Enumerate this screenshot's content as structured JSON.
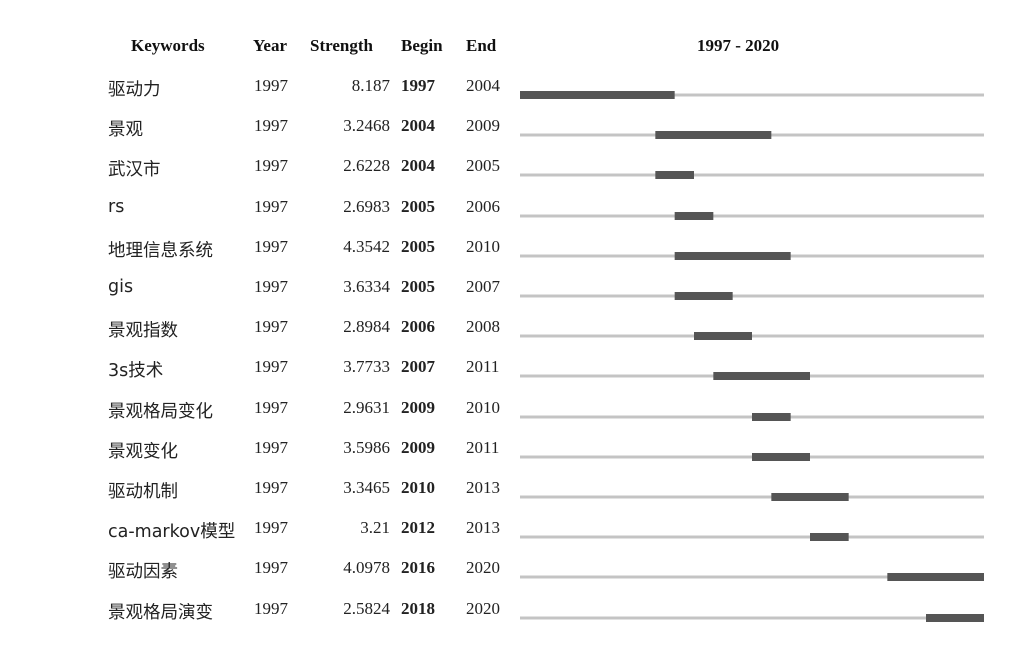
{
  "header": {
    "keywords": "Keywords",
    "year": "Year",
    "strength": "Strength",
    "begin": "Begin",
    "end": "End",
    "range": "1997 - 2020"
  },
  "colors": {
    "baseline": "#c4c4c4",
    "burst": "#555555"
  },
  "chart_data": {
    "type": "table",
    "timeline_start": 1997,
    "timeline_end": 2020,
    "columns": [
      "Keywords",
      "Year",
      "Strength",
      "Begin",
      "End"
    ],
    "rows": [
      {
        "keyword": "驱动力",
        "year": "1997",
        "strength": "8.187",
        "begin": "1997",
        "end": "2004"
      },
      {
        "keyword": "景观",
        "year": "1997",
        "strength": "3.2468",
        "begin": "2004",
        "end": "2009"
      },
      {
        "keyword": "武汉市",
        "year": "1997",
        "strength": "2.6228",
        "begin": "2004",
        "end": "2005"
      },
      {
        "keyword": "rs",
        "year": "1997",
        "strength": "2.6983",
        "begin": "2005",
        "end": "2006"
      },
      {
        "keyword": "地理信息系统",
        "year": "1997",
        "strength": "4.3542",
        "begin": "2005",
        "end": "2010"
      },
      {
        "keyword": "gis",
        "year": "1997",
        "strength": "3.6334",
        "begin": "2005",
        "end": "2007"
      },
      {
        "keyword": "景观指数",
        "year": "1997",
        "strength": "2.8984",
        "begin": "2006",
        "end": "2008"
      },
      {
        "keyword": "3s技术",
        "year": "1997",
        "strength": "3.7733",
        "begin": "2007",
        "end": "2011"
      },
      {
        "keyword": "景观格局变化",
        "year": "1997",
        "strength": "2.9631",
        "begin": "2009",
        "end": "2010"
      },
      {
        "keyword": "景观变化",
        "year": "1997",
        "strength": "3.5986",
        "begin": "2009",
        "end": "2011"
      },
      {
        "keyword": "驱动机制",
        "year": "1997",
        "strength": "3.3465",
        "begin": "2010",
        "end": "2013"
      },
      {
        "keyword": "ca-markov模型",
        "year": "1997",
        "strength": "3.21",
        "begin": "2012",
        "end": "2013"
      },
      {
        "keyword": "驱动因素",
        "year": "1997",
        "strength": "4.0978",
        "begin": "2016",
        "end": "2020"
      },
      {
        "keyword": "景观格局演变",
        "year": "1997",
        "strength": "2.5824",
        "begin": "2018",
        "end": "2020"
      }
    ]
  }
}
